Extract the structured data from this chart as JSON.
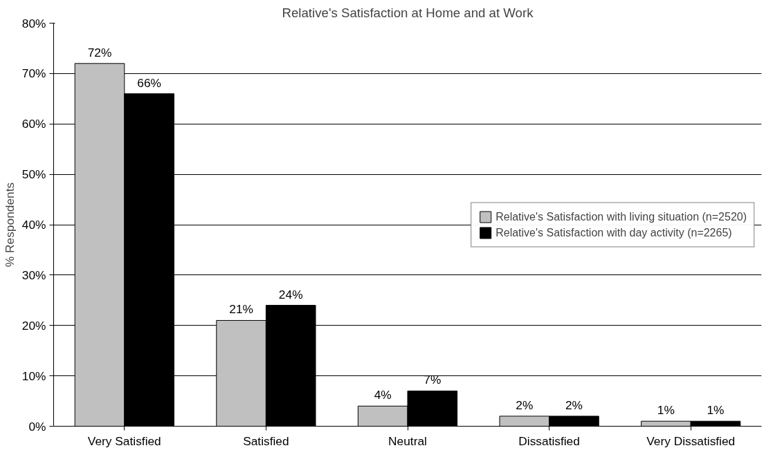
{
  "chart_data": {
    "type": "bar",
    "title": "Relative's Satisfaction at Home and at Work",
    "ylabel": "% Respondents",
    "categories": [
      "Very Satisfied",
      "Satisfied",
      "Neutral",
      "Dissatisfied",
      "Very Dissatisfied"
    ],
    "series": [
      {
        "name": "Relative's Satisfaction with living situation (n=2520)",
        "color": "#c0c0c0",
        "values": [
          72,
          21,
          4,
          2,
          1
        ],
        "value_labels": [
          "72%",
          "21%",
          "4%",
          "2%",
          "1%"
        ]
      },
      {
        "name": "Relative's Satisfaction with day activity (n=2265)",
        "color": "#000000",
        "values": [
          66,
          24,
          7,
          2,
          1
        ],
        "value_labels": [
          "66%",
          "24%",
          "7%",
          "2%",
          "1%"
        ]
      }
    ],
    "ylim": [
      0,
      80
    ],
    "yticks": [
      {
        "value": 0,
        "label": "0%"
      },
      {
        "value": 10,
        "label": "10%"
      },
      {
        "value": 20,
        "label": "20%"
      },
      {
        "value": 30,
        "label": "30%"
      },
      {
        "value": 40,
        "label": "40%"
      },
      {
        "value": 50,
        "label": "50%"
      },
      {
        "value": 60,
        "label": "60%"
      },
      {
        "value": 70,
        "label": "70%"
      },
      {
        "value": 80,
        "label": "80%"
      }
    ],
    "grid": "y",
    "legend": "right"
  }
}
